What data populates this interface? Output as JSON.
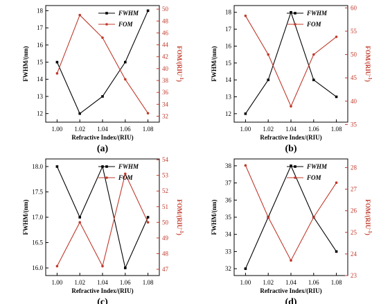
{
  "chart_data": [
    {
      "type": "line",
      "caption": "(a)",
      "xlabel": "Refractive Index/(RIU)",
      "ylabel": "FWHM/(nm)",
      "y2label": "FOM/(RIU",
      "y2label_sup": "-1",
      "y2label_end": ")",
      "x": [
        1.0,
        1.02,
        1.04,
        1.06,
        1.08
      ],
      "x_ticks": [
        "1.00",
        "1.02",
        "1.04",
        "1.06",
        "1.08"
      ],
      "xlim": [
        0.99,
        1.09
      ],
      "ylim": [
        11.5,
        18.3
      ],
      "y_ticks": [
        "12",
        "13",
        "14",
        "15",
        "16",
        "17",
        "18"
      ],
      "y2lim": [
        31,
        50.6
      ],
      "y2_ticks": [
        "32",
        "34",
        "36",
        "38",
        "40",
        "42",
        "44",
        "46",
        "48",
        "50"
      ],
      "series": [
        {
          "name": "FWHM",
          "axis": "left",
          "color": "#000000",
          "values": [
            15,
            12,
            13,
            15,
            18
          ]
        },
        {
          "name": "FOM",
          "axis": "right",
          "color": "#c0392b",
          "values": [
            39.2,
            49.0,
            45.2,
            38.2,
            32.5
          ]
        }
      ],
      "legend": "top-right"
    },
    {
      "type": "line",
      "caption": "(b)",
      "xlabel": "Refractive Index/(RIU)",
      "ylabel": "FWHM/(nm)",
      "y2label": "FOM/(RIU",
      "y2label_sup": "-1",
      "y2label_end": ")",
      "x": [
        1.0,
        1.02,
        1.04,
        1.06,
        1.08
      ],
      "x_ticks": [
        "1.00",
        "1.02",
        "1.04",
        "1.06",
        "1.08"
      ],
      "xlim": [
        0.99,
        1.09
      ],
      "ylim": [
        11.5,
        18.4
      ],
      "y_ticks": [
        "12",
        "13",
        "14",
        "15",
        "16",
        "17",
        "18"
      ],
      "y2lim": [
        35.5,
        60.5
      ],
      "y2_ticks": [
        "35",
        "40",
        "45",
        "50",
        "55",
        "60"
      ],
      "series": [
        {
          "name": "FWHM",
          "axis": "left",
          "color": "#000000",
          "values": [
            12,
            14,
            18,
            14,
            13
          ]
        },
        {
          "name": "FOM",
          "axis": "right",
          "color": "#c0392b",
          "values": [
            58.3,
            50.0,
            38.9,
            50.0,
            53.8
          ]
        }
      ],
      "legend": "top-right"
    },
    {
      "type": "line",
      "caption": "(c)",
      "xlabel": "Refractive Index/(RIU)",
      "ylabel": "FWHM/(nm)",
      "y2label": "FOM/(RIU",
      "y2label_sup": "-1",
      "y2label_end": ")",
      "x": [
        1.0,
        1.02,
        1.04,
        1.06,
        1.08
      ],
      "x_ticks": [
        "1.00",
        "1.02",
        "1.04",
        "1.06",
        "1.08"
      ],
      "xlim": [
        0.99,
        1.09
      ],
      "ylim": [
        15.85,
        18.15
      ],
      "y_ticks": [
        "16.0",
        "16.5",
        "17.0",
        "17.5",
        "18.0"
      ],
      "y2lim": [
        46.6,
        54.05
      ],
      "y2_ticks": [
        "47",
        "48",
        "49",
        "50",
        "51",
        "52",
        "53",
        "54"
      ],
      "series": [
        {
          "name": "FWHM",
          "axis": "left",
          "color": "#000000",
          "values": [
            18,
            17,
            18,
            16,
            17
          ]
        },
        {
          "name": "FOM",
          "axis": "right",
          "color": "#c0392b",
          "values": [
            47.2,
            50.0,
            47.2,
            53.1,
            50.0
          ]
        }
      ],
      "legend": "top-right"
    },
    {
      "type": "line",
      "caption": "(d)",
      "xlabel": "Refractive Index/(RIU)",
      "ylabel": "FWHM/(nm)",
      "y2label": "FOM/(RIU",
      "y2label_sup": "-1",
      "y2label_end": ")",
      "x": [
        1.0,
        1.02,
        1.04,
        1.06,
        1.08
      ],
      "x_ticks": [
        "1.00",
        "1.02",
        "1.04",
        "1.06",
        "1.08"
      ],
      "xlim": [
        0.99,
        1.09
      ],
      "ylim": [
        31.6,
        38.4
      ],
      "y_ticks": [
        "32",
        "33",
        "34",
        "35",
        "36",
        "37",
        "38"
      ],
      "y2lim": [
        23,
        28.4
      ],
      "y2_ticks": [
        "23",
        "24",
        "25",
        "26",
        "27",
        "28"
      ],
      "series": [
        {
          "name": "FWHM",
          "axis": "left",
          "color": "#000000",
          "values": [
            32,
            35,
            38,
            35,
            33
          ]
        },
        {
          "name": "FOM",
          "axis": "right",
          "color": "#c0392b",
          "values": [
            28.1,
            25.7,
            23.7,
            25.7,
            27.3
          ]
        }
      ],
      "legend": "top-right"
    }
  ]
}
